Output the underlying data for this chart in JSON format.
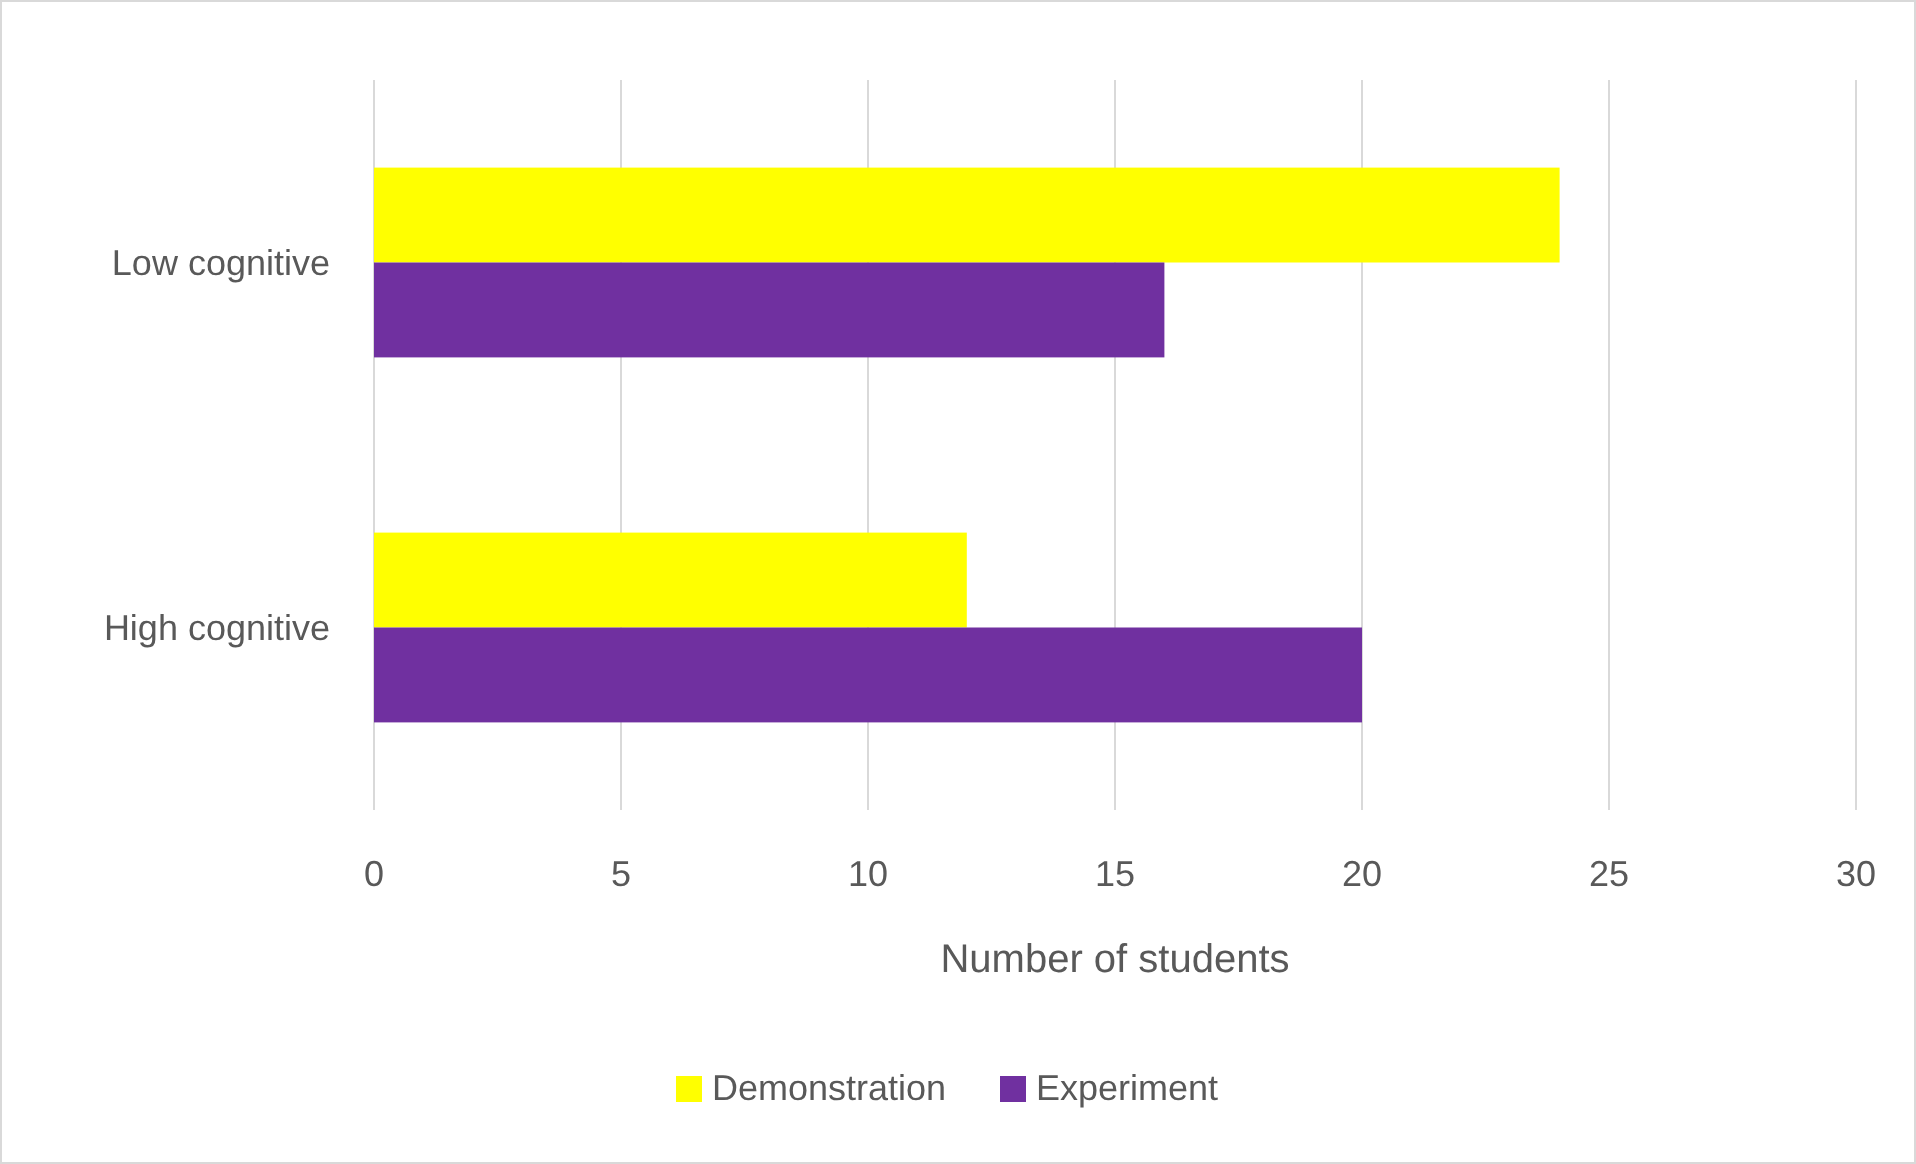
{
  "chart_data": {
    "type": "bar",
    "orientation": "horizontal",
    "categories": [
      "Low cognitive",
      "High cognitive"
    ],
    "series": [
      {
        "name": "Demonstration",
        "color": "#ffff00",
        "values": [
          24,
          12
        ]
      },
      {
        "name": "Experiment",
        "color": "#7030a0",
        "values": [
          16,
          20
        ]
      }
    ],
    "xlabel": "Number of students",
    "xlim": [
      0,
      30
    ],
    "xticks": [
      0,
      5,
      10,
      15,
      20,
      25,
      30
    ],
    "grid": "x",
    "legend": "bottom"
  }
}
